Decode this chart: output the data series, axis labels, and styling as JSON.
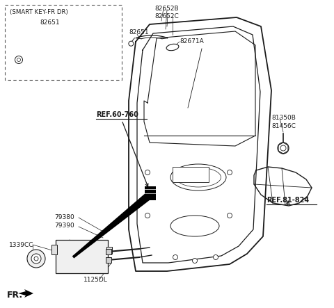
{
  "bg_color": "#ffffff",
  "line_color": "#1a1a1a",
  "labels": {
    "smart_key_title": "(SMART KEY-FR DR)",
    "smart_key_part": "82651",
    "part_82652B": "82652B",
    "part_82652C": "82652C",
    "part_82651_2": "82651",
    "part_82671A": "82671A",
    "ref_60_760": "REF.60-760",
    "ref_81_824": "REF.81-824",
    "part_81350B": "81350B",
    "part_81456C": "81456C",
    "part_79380": "79380",
    "part_79390": "79390",
    "part_1339CC": "1339CC",
    "part_1125DL": "1125DL",
    "fr_label": "FR."
  }
}
